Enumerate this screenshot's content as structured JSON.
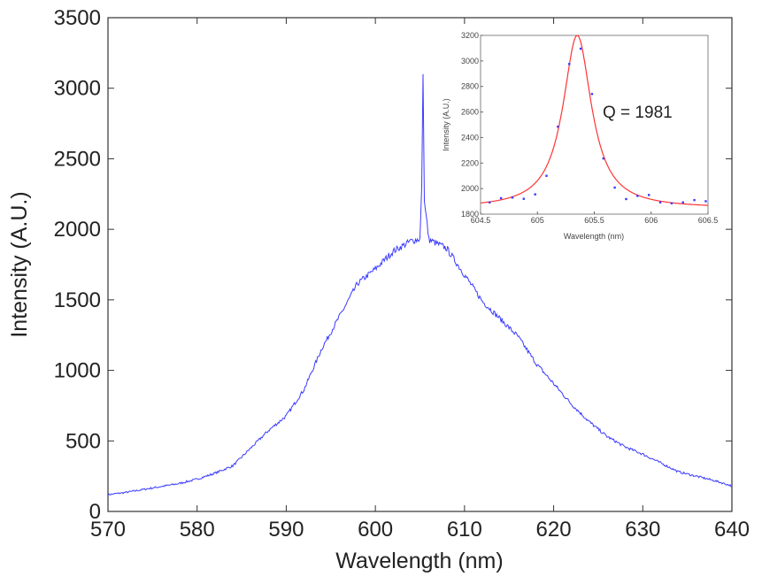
{
  "chart_data": [
    {
      "type": "line",
      "name": "main-spectrum",
      "xlabel": "Wavelength (nm)",
      "ylabel": "Intensity (A.U.)",
      "xlim": [
        570,
        640
      ],
      "ylim": [
        0,
        3500
      ],
      "xticks": [
        570,
        580,
        590,
        600,
        610,
        620,
        630,
        640
      ],
      "yticks": [
        0,
        500,
        1000,
        1500,
        2000,
        2500,
        3000,
        3500
      ],
      "grid": false,
      "color": "#3b3bff",
      "series": [
        {
          "name": "spectrum",
          "x": [
            570,
            572,
            574,
            576,
            578,
            580,
            582,
            584,
            586,
            588,
            590,
            592,
            594,
            596,
            598,
            600,
            602,
            604,
            605,
            605.2,
            605.35,
            605.5,
            606,
            608,
            610,
            612,
            614,
            616,
            618,
            620,
            622,
            624,
            626,
            628,
            630,
            632,
            634,
            636,
            638,
            640
          ],
          "y": [
            119,
            135,
            156,
            177,
            198,
            229,
            271,
            323,
            448,
            573,
            677,
            865,
            1156,
            1385,
            1615,
            1719,
            1844,
            1917,
            1931,
            2300,
            3100,
            2200,
            1927,
            1865,
            1677,
            1490,
            1365,
            1240,
            1052,
            906,
            760,
            635,
            531,
            458,
            406,
            344,
            281,
            250,
            219,
            181
          ]
        }
      ]
    },
    {
      "type": "scatter",
      "name": "inset-resonance",
      "xlabel": "Wavelength (nm)",
      "ylabel": "Intensity (A.U.)",
      "xlim": [
        604.5,
        606.5
      ],
      "ylim": [
        1800,
        3200
      ],
      "xticks": [
        "604.5",
        "605",
        "605.5",
        "606",
        "606.5"
      ],
      "yticks": [
        "1800",
        "2000",
        "2200",
        "2400",
        "2600",
        "2800",
        "3000",
        "3200"
      ],
      "annotation": "Q = 1981",
      "series": [
        {
          "name": "measured",
          "color": "#3b3bff",
          "x": [
            604.58,
            604.68,
            604.78,
            604.88,
            604.98,
            605.08,
            605.18,
            605.28,
            605.38,
            605.48,
            605.58,
            605.68,
            605.78,
            605.88,
            605.98,
            606.08,
            606.18,
            606.28,
            606.38,
            606.48
          ],
          "y": [
            1892,
            1925,
            1930,
            1920,
            1955,
            2100,
            2485,
            2976,
            3096,
            2741,
            2236,
            2008,
            1918,
            1943,
            1950,
            1892,
            1885,
            1892,
            1910,
            1901
          ]
        },
        {
          "name": "lorentzian-fit",
          "color": "#ff3333",
          "center": 605.35,
          "fwhm": 0.306,
          "peak": 3200,
          "baseline": 1845
        }
      ]
    }
  ]
}
